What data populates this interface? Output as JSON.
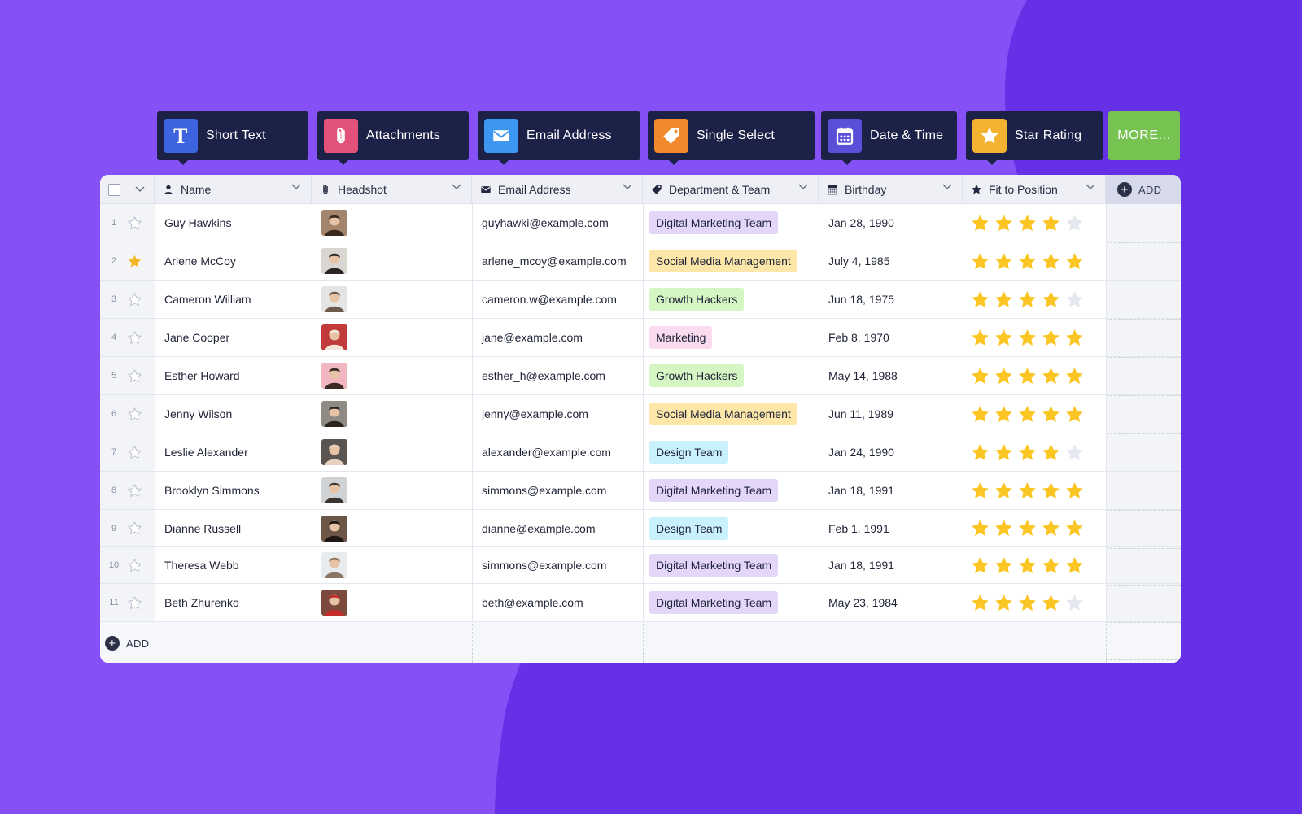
{
  "theme": {
    "background": "#8550f6",
    "blob": "#6631e6",
    "toolbar_bg": "#1c2148",
    "star_filled": "#fbc623",
    "star_empty": "#e6e8f0"
  },
  "toolbar": {
    "items": [
      {
        "label": "Short Text",
        "icon": "text-t-icon",
        "color": "#3c64e1"
      },
      {
        "label": "Attachments",
        "icon": "paperclip-icon",
        "color": "#e2517a"
      },
      {
        "label": "Email Address",
        "icon": "envelope-icon",
        "color": "#3d97f0"
      },
      {
        "label": "Single Select",
        "icon": "tag-icon",
        "color": "#f08a2d"
      },
      {
        "label": "Date & Time",
        "icon": "calendar-icon",
        "color": "#5a4fd8"
      },
      {
        "label": "Star Rating",
        "icon": "star-icon",
        "color": "#f3b330"
      }
    ],
    "more_label": "MORE..."
  },
  "table": {
    "columns": [
      {
        "label": "Name",
        "icon": "person-icon"
      },
      {
        "label": "Headshot",
        "icon": "paperclip-icon"
      },
      {
        "label": "Email Address",
        "icon": "envelope-icon"
      },
      {
        "label": "Department & Team",
        "icon": "tag-icon"
      },
      {
        "label": "Birthday",
        "icon": "calendar-icon"
      },
      {
        "label": "Fit to Position",
        "icon": "star-icon"
      }
    ],
    "add_column_label": "ADD",
    "add_row_label": "ADD",
    "tag_colors": {
      "Digital Marketing Team": "#e3d6f9",
      "Social Media Management": "#fde7a8",
      "Growth Hackers": "#d5f5c2",
      "Marketing": "#fbdbf0",
      "Design Team": "#c9f1fb"
    },
    "rows": [
      {
        "num": "1",
        "starred": false,
        "name": "Guy Hawkins",
        "email": "guyhawki@example.com",
        "dept": "Digital Marketing Team",
        "birthday": "Jan 28, 1990",
        "rating": 4,
        "avatar_bg": "#a4846a",
        "avatar_fg": "#3b2a20"
      },
      {
        "num": "2",
        "starred": true,
        "name": "Arlene McCoy",
        "email": "arlene_mcoy@example.com",
        "dept": "Social Media Management",
        "birthday": "July 4, 1985",
        "rating": 5,
        "avatar_bg": "#d9d6d2",
        "avatar_fg": "#2c2420"
      },
      {
        "num": "3",
        "starred": false,
        "name": "Cameron William",
        "email": "cameron.w@example.com",
        "dept": "Growth Hackers",
        "birthday": "Jun 18, 1975",
        "rating": 4,
        "avatar_bg": "#e4e4e4",
        "avatar_fg": "#6b5a4d"
      },
      {
        "num": "4",
        "starred": false,
        "name": "Jane Cooper",
        "email": "jane@example.com",
        "dept": "Marketing",
        "birthday": "Feb 8, 1970",
        "rating": 5,
        "avatar_bg": "#c23b3b",
        "avatar_fg": "#f2e6d8"
      },
      {
        "num": "5",
        "starred": false,
        "name": "Esther Howard",
        "email": "esther_h@example.com",
        "dept": "Growth Hackers",
        "birthday": "May 14, 1988",
        "rating": 5,
        "avatar_bg": "#f1b7c0",
        "avatar_fg": "#3a2a22"
      },
      {
        "num": "6",
        "starred": false,
        "name": "Jenny Wilson",
        "email": "jenny@example.com",
        "dept": "Social Media Management",
        "birthday": "Jun 11, 1989",
        "rating": 5,
        "avatar_bg": "#8f8a84",
        "avatar_fg": "#2b2521"
      },
      {
        "num": "7",
        "starred": false,
        "name": "Leslie Alexander",
        "email": "alexander@example.com",
        "dept": "Design Team",
        "birthday": "Jan 24, 1990",
        "rating": 4,
        "avatar_bg": "#5a5550",
        "avatar_fg": "#e8d2bf"
      },
      {
        "num": "8",
        "starred": false,
        "name": "Brooklyn Simmons",
        "email": "simmons@example.com",
        "dept": "Digital Marketing Team",
        "birthday": "Jan 18, 1991",
        "rating": 5,
        "avatar_bg": "#cfd3d6",
        "avatar_fg": "#3b3531"
      },
      {
        "num": "9",
        "starred": false,
        "name": "Dianne Russell",
        "email": "dianne@example.com",
        "dept": "Design Team",
        "birthday": "Feb 1, 1991",
        "rating": 5,
        "avatar_bg": "#6b5648",
        "avatar_fg": "#1e1714"
      },
      {
        "num": "10",
        "starred": false,
        "name": "Theresa Webb",
        "email": "simmons@example.com",
        "dept": "Digital Marketing Team",
        "birthday": "Jan 18, 1991",
        "rating": 5,
        "avatar_bg": "#e9ecee",
        "avatar_fg": "#8b7563"
      },
      {
        "num": "11",
        "starred": false,
        "name": "Beth Zhurenko",
        "email": "beth@example.com",
        "dept": "Digital Marketing Team",
        "birthday": "May 23, 1984",
        "rating": 4,
        "avatar_bg": "#7b4a3c",
        "avatar_fg": "#c42b2b"
      }
    ]
  }
}
